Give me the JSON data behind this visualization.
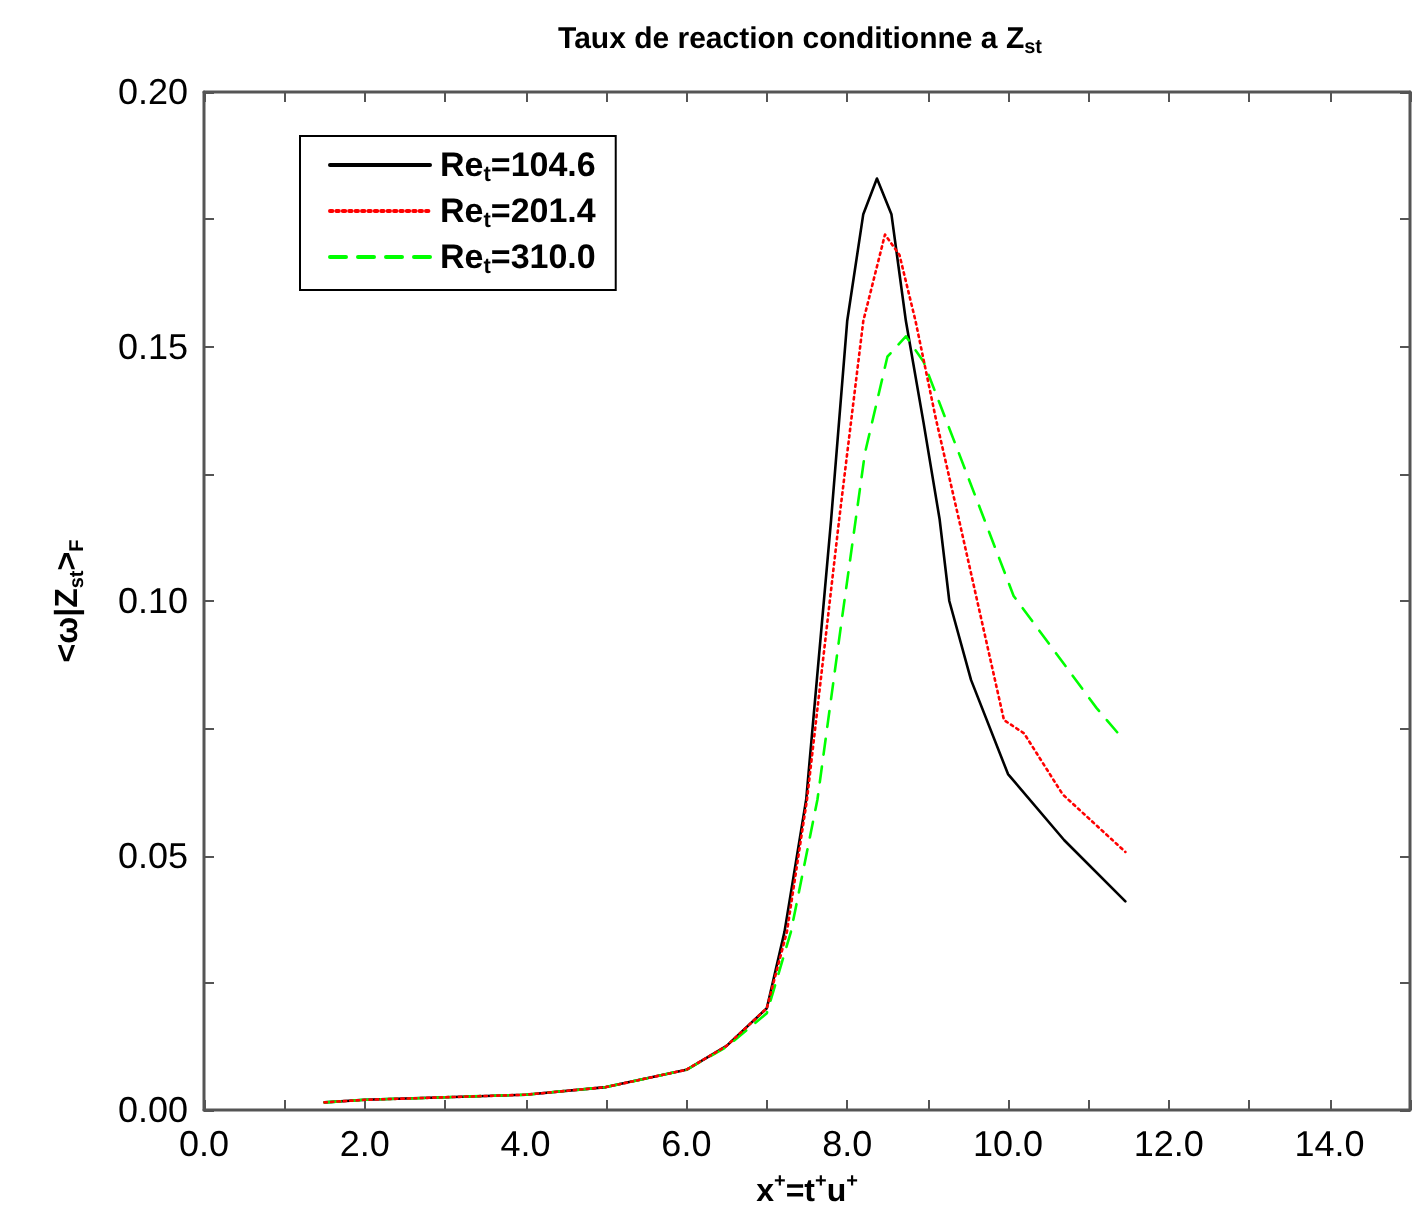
{
  "chart_data": {
    "type": "line",
    "title": "Taux de reaction conditionne a Z$_{st}$",
    "xlabel": "x$^{+}$=t$^{+}$u$^{+}$",
    "ylabel": "<ω|Z$_{st}$>$_{F}$",
    "xlim": [
      0,
      15
    ],
    "ylim": [
      0,
      0.2
    ],
    "xticks": [
      {
        "value": 0,
        "label": "0.0"
      },
      {
        "value": 1,
        "label": null
      },
      {
        "value": 2,
        "label": "2.0"
      },
      {
        "value": 3,
        "label": null
      },
      {
        "value": 4,
        "label": "4.0"
      },
      {
        "value": 5,
        "label": null
      },
      {
        "value": 6,
        "label": "6.0"
      },
      {
        "value": 7,
        "label": null
      },
      {
        "value": 8,
        "label": "8.0"
      },
      {
        "value": 9,
        "label": null
      },
      {
        "value": 10,
        "label": "10.0"
      },
      {
        "value": 11,
        "label": null
      },
      {
        "value": 12,
        "label": "12.0"
      },
      {
        "value": 13,
        "label": null
      },
      {
        "value": 14,
        "label": "14.0"
      },
      {
        "value": 15,
        "label": null
      }
    ],
    "yticks": [
      {
        "value": 0,
        "label": "0.00"
      },
      {
        "value": 0.025,
        "label": null
      },
      {
        "value": 0.05,
        "label": "0.05"
      },
      {
        "value": 0.075,
        "label": null
      },
      {
        "value": 0.1,
        "label": "0.10"
      },
      {
        "value": 0.125,
        "label": null
      },
      {
        "value": 0.15,
        "label": "0.15"
      },
      {
        "value": 0.175,
        "label": null
      },
      {
        "value": 0.2,
        "label": "0.20"
      }
    ],
    "grid": false,
    "legend": "top left",
    "marker": "none",
    "series": [
      {
        "name": "Re$_{t}$=104.6",
        "color": "#000000",
        "line_style": "solid",
        "x": [
          1.5,
          2,
          3,
          4,
          5,
          6,
          6.5,
          7,
          7.22,
          7.49,
          7.8,
          8.0,
          8.2,
          8.37,
          8.55,
          8.73,
          8.95,
          9.15,
          9.27,
          9.54,
          10.0,
          10.7,
          11.46
        ],
        "values": [
          0.0015,
          0.002,
          0.0025,
          0.003,
          0.0045,
          0.0079,
          0.0126,
          0.02,
          0.035,
          0.061,
          0.116,
          0.155,
          0.176,
          0.183,
          0.176,
          0.155,
          0.135,
          0.116,
          0.1,
          0.0845,
          0.066,
          0.053,
          0.041
        ]
      },
      {
        "name": "Re$_{t}$=201.4",
        "color": "#ff0000",
        "line_style": "dotted",
        "x": [
          1.5,
          2,
          3,
          4,
          5,
          6,
          6.5,
          7,
          7.25,
          7.5,
          7.9,
          8.2,
          8.47,
          8.65,
          8.85,
          9.1,
          9.39,
          9.95,
          10.2,
          10.68,
          11.46
        ],
        "values": [
          0.0015,
          0.002,
          0.0025,
          0.003,
          0.0045,
          0.0079,
          0.0126,
          0.02,
          0.035,
          0.061,
          0.116,
          0.155,
          0.172,
          0.168,
          0.155,
          0.136,
          0.116,
          0.0766,
          0.074,
          0.062,
          0.0507
        ]
      },
      {
        "name": "Re$_{t}$=310.0",
        "color": "#00ff00",
        "line_style": "dashed",
        "x": [
          1.5,
          2,
          3,
          4,
          5,
          6,
          6.5,
          7,
          7.3,
          7.63,
          7.93,
          8.22,
          8.5,
          8.73,
          8.95,
          9.39,
          10.07,
          11.1,
          11.44
        ],
        "values": [
          0.0015,
          0.002,
          0.0025,
          0.003,
          0.0045,
          0.0079,
          0.0124,
          0.019,
          0.035,
          0.061,
          0.096,
          0.129,
          0.148,
          0.152,
          0.147,
          0.129,
          0.101,
          0.079,
          0.0727
        ]
      }
    ]
  }
}
